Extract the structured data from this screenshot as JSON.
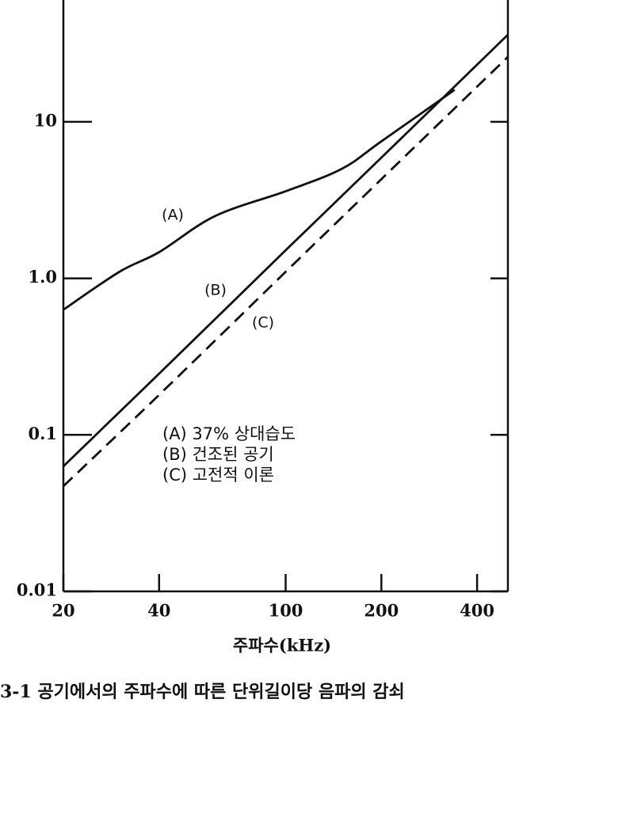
{
  "chart_data": {
    "type": "line",
    "log_x": true,
    "log_y": true,
    "xlabel": "주파수(kHz)",
    "caption": "3-1 공기에서의 주파수에 따른 단위길이당 음파의 감쇠",
    "xlim": [
      20,
      500
    ],
    "ylim": [
      0.01,
      60
    ],
    "xticks": [
      20,
      40,
      100,
      200,
      400
    ],
    "yticks": [
      0.01,
      0.1,
      {
        "value": 1,
        "label": "1.0"
      },
      10
    ],
    "series": [
      {
        "name": "(A) 37% 상대습도",
        "label": "(A)",
        "color": "#111",
        "dash": false,
        "x": [
          20,
          30,
          40,
          60,
          100,
          150,
          200,
          340
        ],
        "values": [
          0.63,
          1.1,
          1.47,
          2.5,
          3.6,
          5.0,
          7.5,
          16
        ]
      },
      {
        "name": "(B) 건조된 공기",
        "label": "(B)",
        "color": "#111",
        "dash": false,
        "x": [
          20,
          40,
          100,
          200,
          500
        ],
        "values": [
          0.063,
          0.246,
          1.51,
          5.9,
          36
        ]
      },
      {
        "name": "(C) 고전적 이론",
        "label": "(C)",
        "color": "#111",
        "dash": true,
        "x": [
          20,
          40,
          100,
          200,
          500
        ],
        "values": [
          0.047,
          0.18,
          1.1,
          4.3,
          26
        ]
      }
    ]
  }
}
